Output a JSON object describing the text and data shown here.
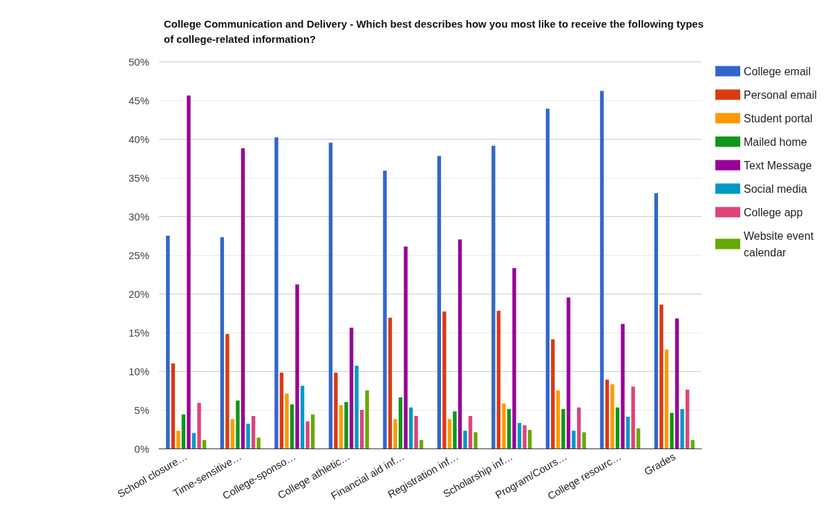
{
  "chart_data": {
    "type": "bar",
    "title": "College Communication and Delivery - Which best describes how you most like to receive the following types of college-related information?",
    "categories": [
      "School closure…",
      "Time-sensitive…",
      "College-sponso…",
      "College athletic…",
      "Financial aid inf…",
      "Registration inf…",
      "Scholarship inf…",
      "Program/Cours…",
      "College resourc…",
      "Grades"
    ],
    "series": [
      {
        "name": "College email",
        "color": "#3366cc",
        "values": [
          27.5,
          27.3,
          40.2,
          39.5,
          35.9,
          37.8,
          39.1,
          43.9,
          46.2,
          33.0
        ]
      },
      {
        "name": "Personal email",
        "color": "#dc3912",
        "values": [
          11.0,
          14.8,
          9.8,
          9.8,
          16.9,
          17.7,
          17.8,
          14.1,
          8.9,
          18.6
        ]
      },
      {
        "name": "Student portal",
        "color": "#ff9900",
        "values": [
          2.3,
          3.8,
          7.1,
          5.6,
          3.8,
          3.8,
          5.8,
          7.5,
          8.3,
          12.8
        ]
      },
      {
        "name": "Mailed home",
        "color": "#109618",
        "values": [
          4.4,
          6.2,
          5.7,
          6.0,
          6.6,
          4.8,
          5.1,
          5.1,
          5.3,
          4.6
        ]
      },
      {
        "name": "Text Message",
        "color": "#990099",
        "values": [
          45.6,
          38.8,
          21.2,
          15.6,
          26.1,
          27.0,
          23.3,
          19.5,
          16.1,
          16.8
        ]
      },
      {
        "name": "Social media",
        "color": "#0099c6",
        "values": [
          2.0,
          3.2,
          8.1,
          10.7,
          5.3,
          2.3,
          3.3,
          2.3,
          4.1,
          5.1
        ]
      },
      {
        "name": "College app",
        "color": "#dd4477",
        "values": [
          5.9,
          4.2,
          3.5,
          5.0,
          4.2,
          4.2,
          3.0,
          5.3,
          8.0,
          7.6
        ]
      },
      {
        "name": "Website event calendar",
        "color": "#66aa00",
        "values": [
          1.1,
          1.4,
          4.4,
          7.5,
          1.1,
          2.1,
          2.4,
          2.1,
          2.6,
          1.1
        ]
      }
    ],
    "ylim": [
      0,
      50
    ],
    "yticks": [
      {
        "value": 0,
        "label": "0%"
      },
      {
        "value": 5,
        "label": "5%"
      },
      {
        "value": 10,
        "label": "10%"
      },
      {
        "value": 15,
        "label": "15%"
      },
      {
        "value": 20,
        "label": "20%"
      },
      {
        "value": 25,
        "label": "25%"
      },
      {
        "value": 30,
        "label": "30%"
      },
      {
        "value": 35,
        "label": "35%"
      },
      {
        "value": 40,
        "label": "40%"
      },
      {
        "value": 45,
        "label": "45%"
      },
      {
        "value": 50,
        "label": "50%"
      }
    ],
    "grid": "y",
    "legend": "top right"
  }
}
